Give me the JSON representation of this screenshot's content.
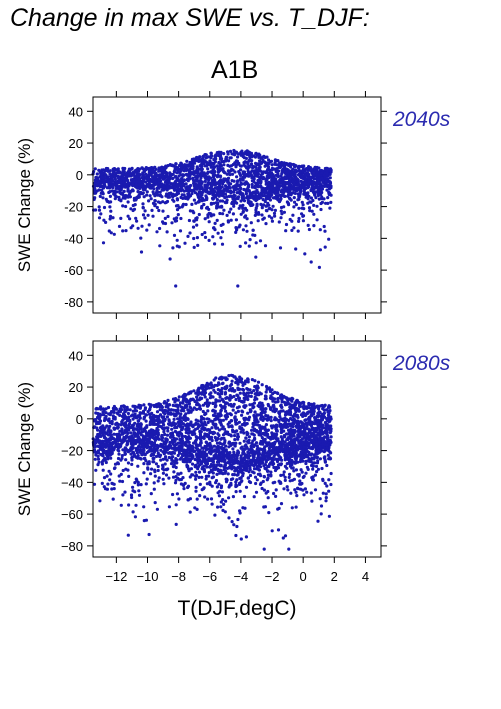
{
  "title": "Change in max SWE vs. T_DJF:",
  "scenario": "A1B",
  "point_color": "#1a1ab0",
  "label_color": "#2b2bb0",
  "chart_data": [
    {
      "type": "scatter",
      "period": "2040s",
      "xlabel": "T(DJF,degC)",
      "ylabel": "SWE Change (%)",
      "xlim": [
        -13.5,
        5
      ],
      "ylim": [
        -87,
        49
      ],
      "x_ticks": [
        -12,
        -10,
        -8,
        -6,
        -4,
        -2,
        0,
        2,
        4
      ],
      "y_ticks": [
        40,
        20,
        0,
        -20,
        -40,
        -60,
        -80
      ],
      "point_cloud": {
        "x_range": [
          -13.5,
          1.8
        ],
        "y_range": [
          -70,
          16
        ],
        "core_y_range": [
          -10,
          10
        ],
        "lowest_point": [
          -4.2,
          -70
        ]
      }
    },
    {
      "type": "scatter",
      "period": "2080s",
      "xlabel": "T(DJF,degC)",
      "ylabel": "SWE Change (%)",
      "xlim": [
        -13.5,
        5
      ],
      "ylim": [
        -87,
        49
      ],
      "x_ticks": [
        -12,
        -10,
        -8,
        -6,
        -4,
        -2,
        0,
        2,
        4
      ],
      "x_tick_labels": [
        "−12",
        "−10",
        "−8",
        "−6",
        "−4",
        "−2",
        "0",
        "2",
        "4"
      ],
      "y_ticks": [
        40,
        20,
        0,
        -20,
        -40,
        -60,
        -80
      ],
      "y_tick_labels": [
        "40",
        "20",
        "0",
        "−20",
        "−40",
        "−60",
        "−80"
      ],
      "point_cloud": {
        "x_range": [
          -13.5,
          1.8
        ],
        "y_range": [
          -82,
          29
        ],
        "core_y_range": [
          -20,
          15
        ],
        "lowest_point": [
          -2.5,
          -82
        ]
      }
    }
  ]
}
